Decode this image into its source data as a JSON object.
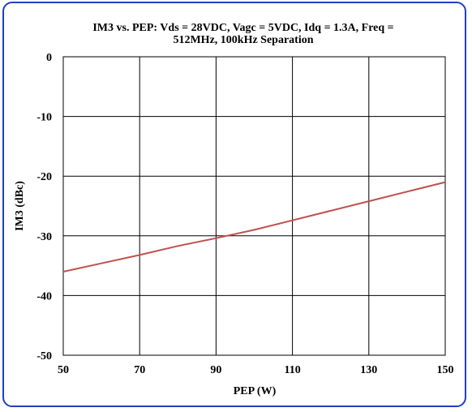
{
  "chart_data": {
    "type": "line",
    "title_line1": "IM3 vs. PEP: Vds = 28VDC, Vagc = 5VDC, Idq = 1.3A, Freq =",
    "title_line2": "512MHz, 100kHz Separation",
    "xlabel": "PEP (W)",
    "ylabel": "IM3 (dBc)",
    "xlim": [
      50,
      150
    ],
    "ylim": [
      -50,
      0
    ],
    "x_ticks": [
      50,
      70,
      90,
      110,
      130,
      150
    ],
    "y_ticks": [
      0,
      -10,
      -20,
      -30,
      -40,
      -50
    ],
    "grid": true,
    "legend": "none",
    "series": [
      {
        "color": "#c0504d",
        "x": [
          50,
          60,
          70,
          80,
          90,
          100,
          110,
          120,
          130,
          140,
          150
        ],
        "y": [
          -36.0,
          -34.6,
          -33.2,
          -31.7,
          -30.4,
          -29.0,
          -27.4,
          -25.8,
          -24.2,
          -22.6,
          -21.0
        ]
      }
    ]
  }
}
